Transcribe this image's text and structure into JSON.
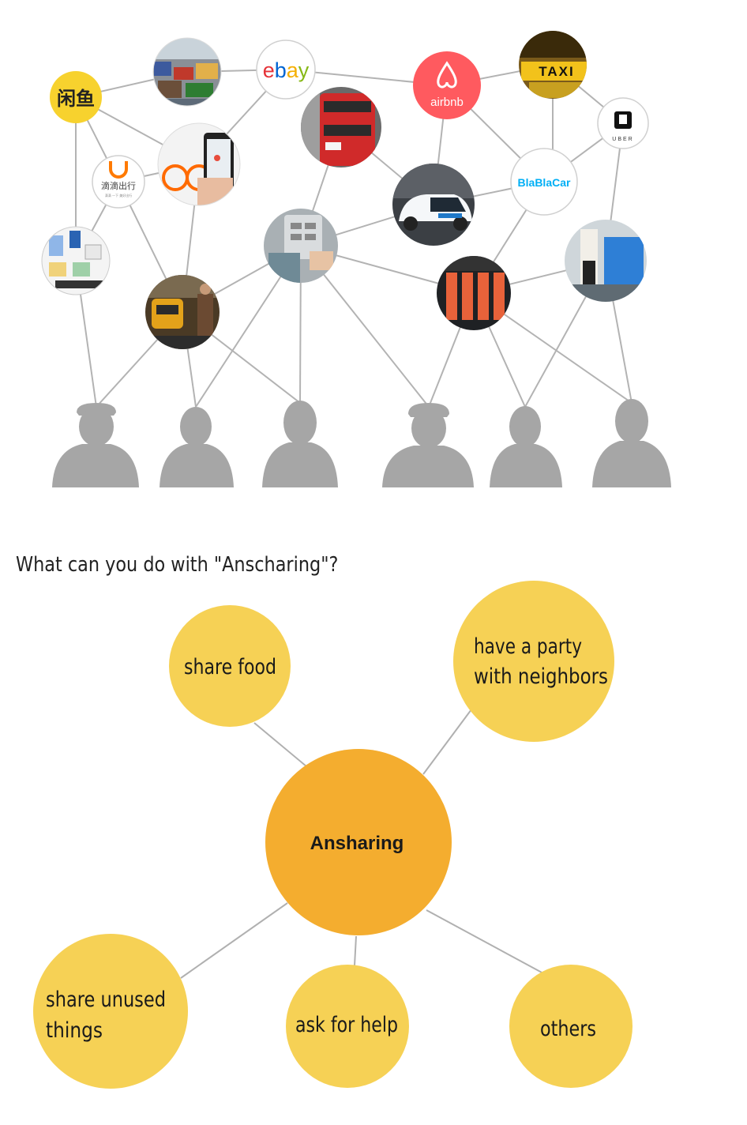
{
  "network": {
    "logos": {
      "xianyu": "闲鱼",
      "ebay": "ebay",
      "airbnb": "airbnb",
      "taxi": "TAXI",
      "uber": "UBER",
      "didi": "滴滴出行",
      "didi_sub": "滴滴 一下 美好出行",
      "blablacar": "BlaBlaCar"
    },
    "photo_icons": [
      "flea-market-photo-icon",
      "bus-photo-icon",
      "bike-app-photo-icon",
      "office-items-photo-icon",
      "powerbank-photo-icon",
      "car-sharing-photo-icon",
      "metro-photo-icon",
      "umbrellas-photo-icon",
      "train-interior-photo-icon"
    ],
    "colors": {
      "xianyu": "#f7d22e",
      "airbnb": "#ff5a5f",
      "ebay_red": "#e53238",
      "ebay_blue": "#0064d2",
      "ebay_yellow": "#f5af02",
      "ebay_green": "#86b817",
      "didi": "#ff7a00",
      "blablacar": "#00aff5",
      "person": "#a6a6a6",
      "link": "#b3b3b3"
    }
  },
  "question": "What can you do with \"Anscharing\"?",
  "mindmap": {
    "center": "Ansharing",
    "nodes": {
      "share_food": [
        "share food"
      ],
      "party": [
        "have a party",
        "with neighbors"
      ],
      "unused": [
        "share unused",
        "things"
      ],
      "help": [
        "ask for help"
      ],
      "others": [
        "others"
      ]
    },
    "colors": {
      "center": "#f4ad2f",
      "node": "#f6d155",
      "link": "#b0b0b0"
    }
  }
}
